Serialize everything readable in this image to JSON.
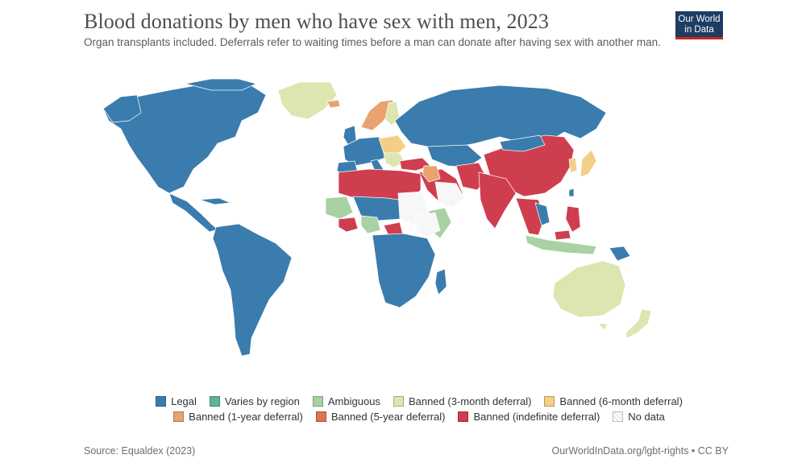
{
  "title": "Blood donations by men who have sex with men, 2023",
  "subtitle": "Organ transplants included. Deferrals refer to waiting times before a man can donate after having sex with another man.",
  "logo": {
    "line1": "Our World",
    "line2": "in Data"
  },
  "colors": {
    "legal": "#3a7cad",
    "varies": "#5fb19c",
    "ambiguous": "#a8d2a3",
    "ban3": "#dde6b0",
    "ban6": "#f2cf87",
    "ban1y": "#e9a36e",
    "ban5y": "#dc7450",
    "banIndef": "#cf3e4f",
    "nodata": "#ffffff"
  },
  "legend": {
    "row1": [
      {
        "key": "legal",
        "label": "Legal"
      },
      {
        "key": "varies",
        "label": "Varies by region"
      },
      {
        "key": "ambiguous",
        "label": "Ambiguous"
      },
      {
        "key": "ban3",
        "label": "Banned (3-month deferral)"
      },
      {
        "key": "ban6",
        "label": "Banned (6-month deferral)"
      }
    ],
    "row2": [
      {
        "key": "ban1y",
        "label": "Banned (1-year deferral)"
      },
      {
        "key": "ban5y",
        "label": "Banned (5-year deferral)"
      },
      {
        "key": "banIndef",
        "label": "Banned (indefinite deferral)"
      },
      {
        "key": "nodata",
        "label": "No data"
      }
    ]
  },
  "source": "Source: Equaldex (2023)",
  "credit": "OurWorldInData.org/lgbt-rights • CC BY"
}
